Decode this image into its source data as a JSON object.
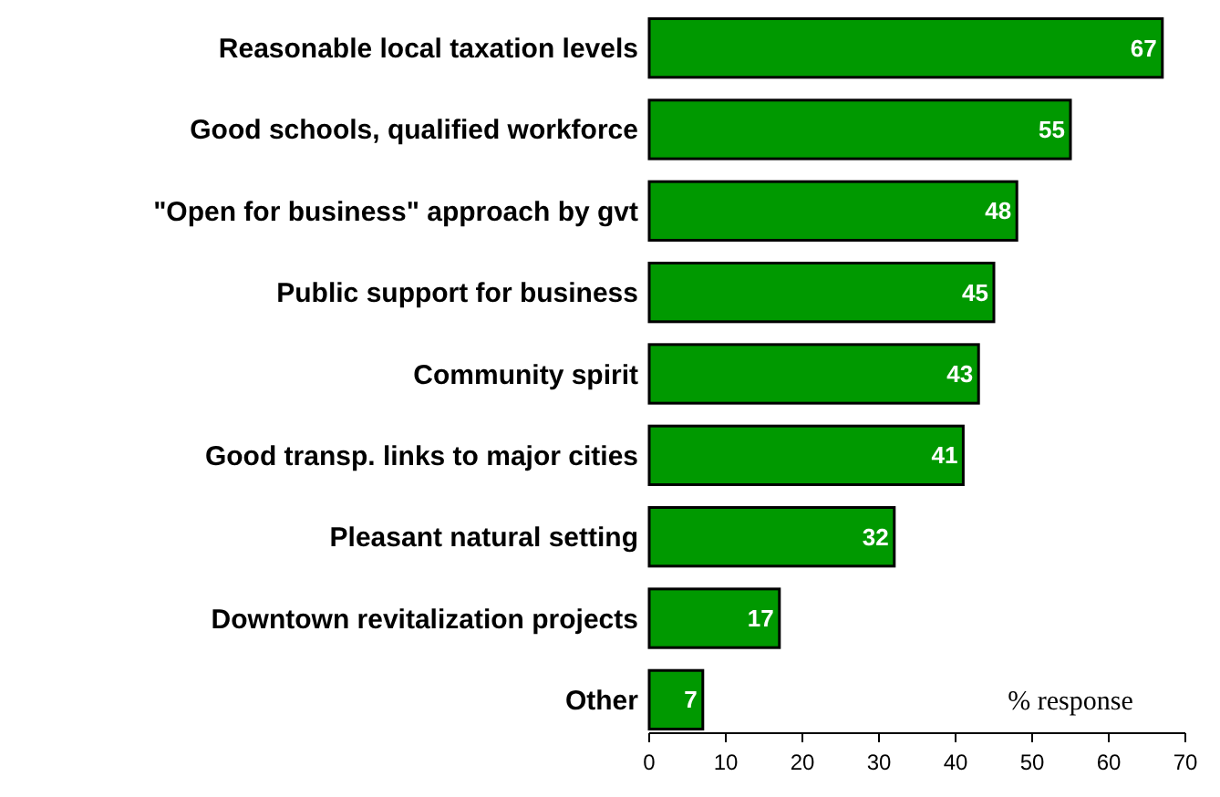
{
  "chart_data": {
    "type": "bar",
    "orientation": "horizontal",
    "categories": [
      "Reasonable local taxation levels",
      "Good schools, qualified workforce",
      "\"Open for business\" approach by gvt",
      "Public support for business",
      "Community spirit",
      "Good transp. links to major cities",
      "Pleasant natural setting",
      "Downtown revitalization projects",
      "Other"
    ],
    "values": [
      67,
      55,
      48,
      45,
      43,
      41,
      32,
      17,
      7
    ],
    "color": "#009900",
    "xlim": [
      0,
      70
    ],
    "xticks": [
      0,
      10,
      20,
      30,
      40,
      50,
      60,
      70
    ],
    "data_labels": true,
    "annotations": [
      "% response"
    ]
  }
}
